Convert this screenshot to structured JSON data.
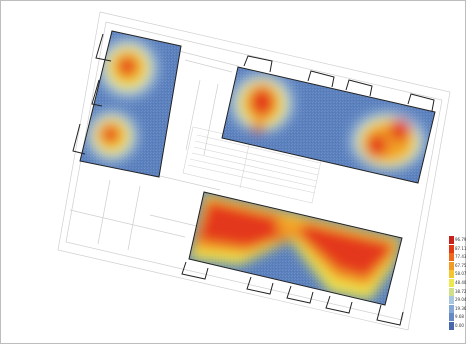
{
  "palette": {
    "cold": "#4a74b8",
    "cool": "#7fa3d3",
    "mid": "#e8e860",
    "warm": "#f0a020",
    "hot": "#e63612",
    "frame": "#bdbdbd",
    "wall": "#222222"
  },
  "legend": {
    "entries": [
      {
        "label": "96.79",
        "color": "#c8201a"
      },
      {
        "label": "87.11",
        "color": "#e33a14"
      },
      {
        "label": "77.43",
        "color": "#ee6a1a"
      },
      {
        "label": "67.75",
        "color": "#f29a22"
      },
      {
        "label": "58.07",
        "color": "#f3c52e"
      },
      {
        "label": "48.40",
        "color": "#eee84f"
      },
      {
        "label": "38.72",
        "color": "#cfe08a"
      },
      {
        "label": "29.04",
        "color": "#a9c6e0"
      },
      {
        "label": "19.36",
        "color": "#86a8d6"
      },
      {
        "label": "9.68",
        "color": "#6489c5"
      },
      {
        "label": "0.00",
        "color": "#4766ae"
      }
    ]
  }
}
